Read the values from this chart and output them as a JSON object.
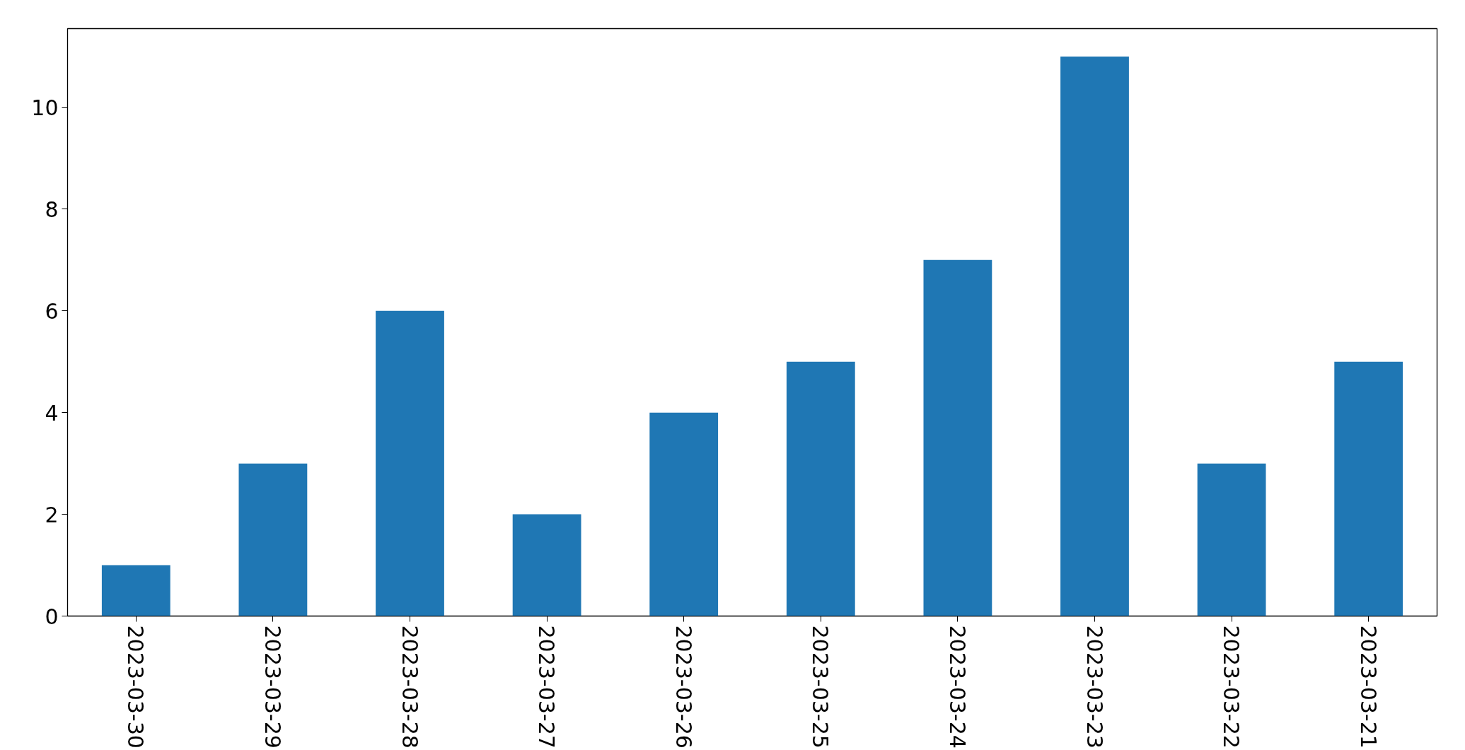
{
  "chart_data": {
    "type": "bar",
    "categories": [
      "2023-03-30",
      "2023-03-29",
      "2023-03-28",
      "2023-03-27",
      "2023-03-26",
      "2023-03-25",
      "2023-03-24",
      "2023-03-23",
      "2023-03-22",
      "2023-03-21"
    ],
    "values": [
      1,
      3,
      6,
      2,
      4,
      5,
      7,
      11,
      3,
      5
    ],
    "color": "#1f77b4",
    "ylim": [
      0,
      11.55
    ],
    "yticks": [
      0,
      2,
      4,
      6,
      8,
      10
    ]
  }
}
